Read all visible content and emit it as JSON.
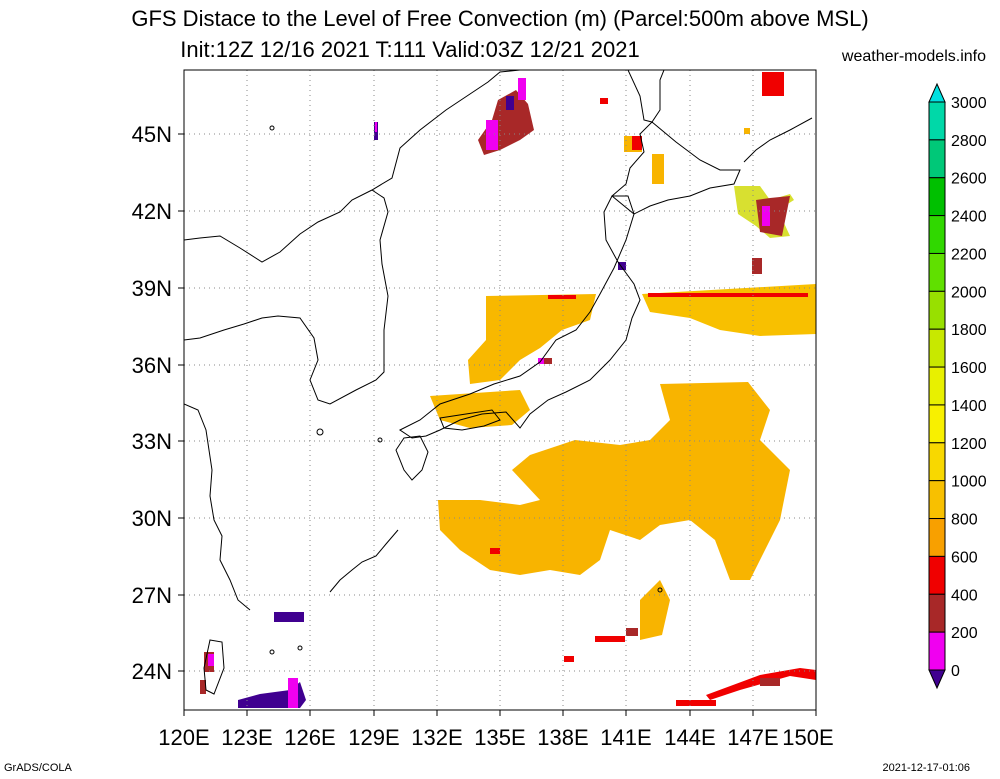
{
  "header": {
    "title_line1": "GFS Distace to the Level of Free Convection (m) (Parcel:500m above MSL)",
    "title_line2": "Init:12Z 12/16 2021 T:111 Valid:03Z 12/21 2021",
    "site": "weather-models.info"
  },
  "footer": {
    "left": "GrADS/COLA",
    "right": "2021-12-17-01:06"
  },
  "map": {
    "lat_labels": [
      "45N",
      "42N",
      "39N",
      "36N",
      "33N",
      "30N",
      "27N",
      "24N"
    ],
    "lon_labels": [
      "120E",
      "123E",
      "126E",
      "129E",
      "132E",
      "135E",
      "138E",
      "141E",
      "144E",
      "147E",
      "150E"
    ]
  },
  "colorbar": {
    "labels": [
      "3000",
      "2800",
      "2600",
      "2400",
      "2200",
      "2000",
      "1800",
      "1600",
      "1400",
      "1200",
      "1000",
      "800",
      "600",
      "400",
      "200",
      "0"
    ],
    "colors": [
      "#00e0e0",
      "#00d8a8",
      "#00c878",
      "#00c000",
      "#30d800",
      "#60e000",
      "#98e000",
      "#c8e800",
      "#e8f000",
      "#f8f000",
      "#f8d800",
      "#f8c000",
      "#f8a000",
      "#f00000",
      "#a82828",
      "#f000f0",
      "#400090"
    ]
  },
  "regions": [
    {
      "name": "sea-of-japan-patch",
      "value_color": "#f8b800"
    },
    {
      "name": "east-japan-patch",
      "value_color": "#f8c000"
    },
    {
      "name": "south-pacific-patch",
      "value_color": "#f8b000"
    }
  ]
}
